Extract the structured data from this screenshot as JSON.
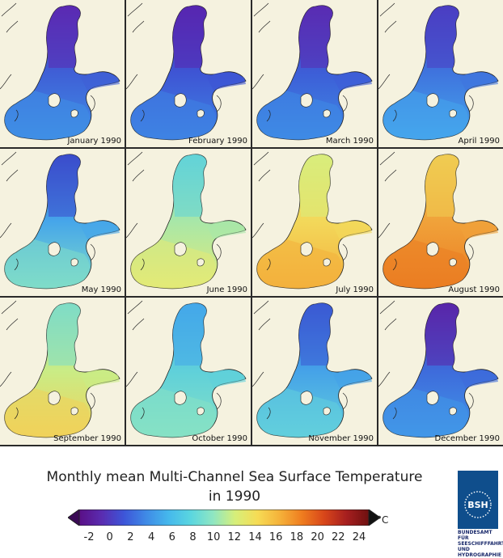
{
  "title_line1": "Monthly mean Multi-Channel Sea Surface Temperature",
  "title_line2": "in 1990",
  "unit": "°C",
  "colorbar": {
    "min": -2,
    "max": 24,
    "ticks": [
      "-2",
      "0",
      "2",
      "4",
      "6",
      "8",
      "10",
      "12",
      "14",
      "16",
      "18",
      "20",
      "22",
      "24"
    ],
    "colors": [
      "#5a0f86",
      "#5a2cb0",
      "#3d55d8",
      "#3f8ae6",
      "#45b8ec",
      "#5ad6e0",
      "#8fe6c2",
      "#d6ef7a",
      "#f6dc55",
      "#f5b23a",
      "#ef7d1f",
      "#d8461a",
      "#a61f1f",
      "#6e1010"
    ]
  },
  "months": [
    {
      "label": "January 1990",
      "color_north": "#5b2ab3",
      "color_mid": "#3f5fd6",
      "color_south": "#3f8fe6"
    },
    {
      "label": "February 1990",
      "color_north": "#5726b0",
      "color_mid": "#3e55d4",
      "color_south": "#3e83e3"
    },
    {
      "label": "March 1990",
      "color_north": "#5a2cb2",
      "color_mid": "#3d5ed7",
      "color_south": "#3e8be5"
    },
    {
      "label": "April 1990",
      "color_north": "#4a3ec2",
      "color_mid": "#3f74de",
      "color_south": "#45a6ec"
    },
    {
      "label": "May 1990",
      "color_north": "#3b4dcc",
      "color_mid": "#46a6ea",
      "color_south": "#7fdcc9"
    },
    {
      "label": "June 1990",
      "color_north": "#62d3d8",
      "color_mid": "#a8e7a8",
      "color_south": "#e3ea76"
    },
    {
      "label": "July 1990",
      "color_north": "#d8ec7c",
      "color_mid": "#f3d85a",
      "color_south": "#f3b03c"
    },
    {
      "label": "August 1990",
      "color_north": "#f0cc52",
      "color_mid": "#f0a23a",
      "color_south": "#eb7d22"
    },
    {
      "label": "September 1990",
      "color_north": "#7fdcc6",
      "color_mid": "#c9ec86",
      "color_south": "#f1d25a"
    },
    {
      "label": "October 1990",
      "color_north": "#44a8ea",
      "color_mid": "#5fd0da",
      "color_south": "#86e1c4"
    },
    {
      "label": "November 1990",
      "color_north": "#3b5ad3",
      "color_mid": "#45a2e8",
      "color_south": "#62cfdc"
    },
    {
      "label": "December 1990",
      "color_north": "#5926a9",
      "color_mid": "#3e6bdb",
      "color_south": "#4197e8"
    }
  ],
  "logo": {
    "mark": "BSH",
    "line1": "BUNDESAMT FÜR",
    "line2": "SEESCHIFFFAHRT",
    "line3": "UND",
    "line4": "HYDROGRAPHIE"
  }
}
